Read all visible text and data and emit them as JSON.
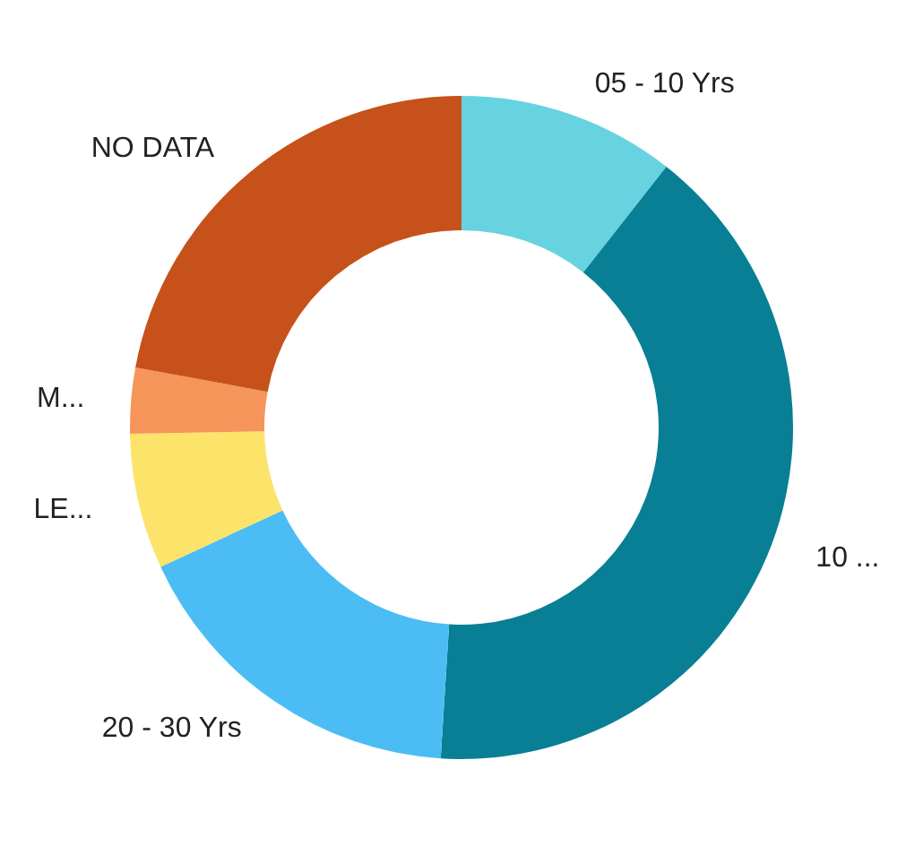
{
  "chart_data": {
    "type": "donut",
    "categories": [
      "05 - 10 Yrs",
      "10 ...",
      "20 - 30 Yrs",
      "LE...",
      "M...",
      "NO DATA"
    ],
    "values": [
      10.6,
      40.4,
      17.1,
      6.6,
      3.2,
      22.1
    ],
    "colors": [
      "#67d3e0",
      "#087f94",
      "#4bbdf4",
      "#fce36a",
      "#f5955a",
      "#c7511a"
    ]
  }
}
